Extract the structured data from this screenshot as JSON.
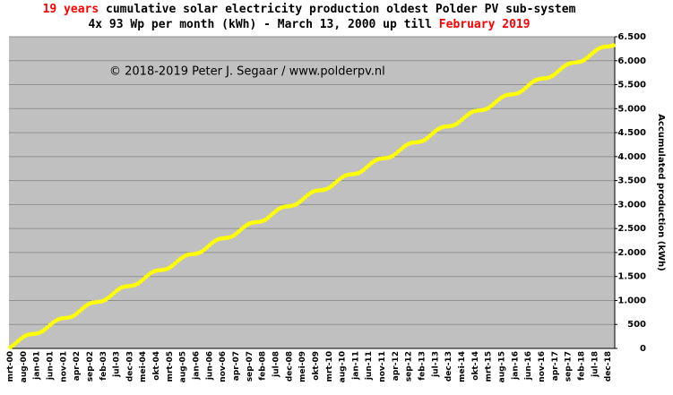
{
  "chart_data": {
    "type": "line",
    "title": [
      "19 years",
      " cumulative solar electricity production  oldest Polder PV sub-system"
    ],
    "subtitle": [
      "4x 93 Wp per month (kWh) - March 13, 2000 up till ",
      "February 2019"
    ],
    "highlight_color": "#ff0000",
    "annotation": "© 2018-2019  Peter J. Segaar / www.polderpv.nl",
    "y_label": "Accumulated production (kWh)",
    "y_axis_side": "right",
    "grid": true,
    "background": "#c0c0c0",
    "color": "#ffff00",
    "line_color": "#404040",
    "ylim": [
      0,
      6500
    ],
    "yticks": [
      0,
      500,
      {
        "value": 1000,
        "label": "1.000"
      },
      {
        "value": 1500,
        "label": "1.500"
      },
      {
        "value": 2000,
        "label": "2.000"
      },
      {
        "value": 2500,
        "label": "2.500"
      },
      {
        "value": 3000,
        "label": "3.000"
      },
      {
        "value": 3500,
        "label": "3.500"
      },
      {
        "value": 4000,
        "label": "4.000"
      },
      {
        "value": 4500,
        "label": "4.500"
      },
      {
        "value": 5000,
        "label": "5.000"
      },
      {
        "value": 5500,
        "label": "5.500"
      },
      {
        "value": 6000,
        "label": "6.000"
      },
      {
        "value": 6500,
        "label": "6.500"
      }
    ],
    "categories": [
      "mrt-00",
      null,
      null,
      null,
      null,
      "aug-00",
      null,
      null,
      null,
      null,
      "jan-01",
      null,
      null,
      null,
      null,
      "jun-01",
      null,
      null,
      null,
      null,
      "nov-01",
      null,
      null,
      null,
      null,
      "apr-02",
      null,
      null,
      null,
      null,
      "sep-02",
      null,
      null,
      null,
      null,
      "feb-03",
      null,
      null,
      null,
      null,
      "jul-03",
      null,
      null,
      null,
      null,
      "dec-03",
      null,
      null,
      null,
      null,
      "mei-04",
      null,
      null,
      null,
      null,
      "okt-04",
      null,
      null,
      null,
      null,
      "mrt-05",
      null,
      null,
      null,
      null,
      "aug-05",
      null,
      null,
      null,
      null,
      "jan-06",
      null,
      null,
      null,
      null,
      "jun-06",
      null,
      null,
      null,
      null,
      "nov-06",
      null,
      null,
      null,
      null,
      "apr-07",
      null,
      null,
      null,
      null,
      "sep-07",
      null,
      null,
      null,
      null,
      "feb-08",
      null,
      null,
      null,
      null,
      "jul-08",
      null,
      null,
      null,
      null,
      "dec-08",
      null,
      null,
      null,
      null,
      "mei-09",
      null,
      null,
      null,
      null,
      "okt-09",
      null,
      null,
      null,
      null,
      "mrt-10",
      null,
      null,
      null,
      null,
      "aug-10",
      null,
      null,
      null,
      null,
      "jan-11",
      null,
      null,
      null,
      null,
      "jun-11",
      null,
      null,
      null,
      null,
      "nov-11",
      null,
      null,
      null,
      null,
      "apr-12",
      null,
      null,
      null,
      null,
      "sep-12",
      null,
      null,
      null,
      null,
      "feb-13",
      null,
      null,
      null,
      null,
      "jul-13",
      null,
      null,
      null,
      null,
      "dec-13",
      null,
      null,
      null,
      null,
      "mei-14",
      null,
      null,
      null,
      null,
      "okt-14",
      null,
      null,
      null,
      null,
      "mrt-15",
      null,
      null,
      null,
      null,
      "aug-15",
      null,
      null,
      null,
      null,
      "jan-16",
      null,
      null,
      null,
      null,
      "jun-16",
      null,
      null,
      null,
      null,
      "nov-16",
      null,
      null,
      null,
      null,
      "apr-17",
      null,
      null,
      null,
      null,
      "sep-17",
      null,
      null,
      null,
      null,
      "feb-18",
      null,
      null,
      null,
      null,
      "jul-18",
      null,
      null,
      null,
      null,
      "dec-18",
      null,
      null
    ],
    "values": [
      20,
      60,
      108,
      155,
      202,
      242,
      272,
      290,
      298,
      303,
      311,
      326,
      353,
      393,
      441,
      488,
      535,
      575,
      605,
      623,
      631,
      636,
      644,
      659,
      686,
      726,
      774,
      821,
      868,
      908,
      938,
      956,
      964,
      969,
      977,
      992,
      1019,
      1059,
      1107,
      1154,
      1201,
      1241,
      1271,
      1289,
      1297,
      1302,
      1310,
      1325,
      1352,
      1392,
      1440,
      1487,
      1534,
      1574,
      1604,
      1622,
      1630,
      1635,
      1643,
      1658,
      1685,
      1725,
      1773,
      1820,
      1867,
      1907,
      1937,
      1955,
      1963,
      1968,
      1976,
      1991,
      2018,
      2058,
      2106,
      2153,
      2200,
      2240,
      2270,
      2288,
      2296,
      2301,
      2309,
      2324,
      2351,
      2391,
      2439,
      2486,
      2533,
      2573,
      2603,
      2621,
      2629,
      2634,
      2642,
      2657,
      2684,
      2724,
      2772,
      2819,
      2866,
      2906,
      2936,
      2954,
      2962,
      2967,
      2975,
      2990,
      3017,
      3057,
      3105,
      3152,
      3199,
      3239,
      3269,
      3287,
      3295,
      3300,
      3308,
      3323,
      3350,
      3390,
      3438,
      3485,
      3532,
      3572,
      3602,
      3620,
      3628,
      3633,
      3641,
      3656,
      3683,
      3723,
      3771,
      3818,
      3865,
      3905,
      3935,
      3953,
      3961,
      3966,
      3974,
      3989,
      4016,
      4056,
      4104,
      4151,
      4198,
      4238,
      4268,
      4286,
      4294,
      4299,
      4307,
      4322,
      4349,
      4389,
      4437,
      4484,
      4531,
      4571,
      4601,
      4619,
      4627,
      4632,
      4640,
      4655,
      4682,
      4722,
      4770,
      4817,
      4864,
      4904,
      4934,
      4952,
      4960,
      4965,
      4973,
      4988,
      5015,
      5055,
      5103,
      5150,
      5197,
      5237,
      5267,
      5285,
      5293,
      5298,
      5306,
      5321,
      5348,
      5388,
      5436,
      5483,
      5530,
      5570,
      5600,
      5618,
      5626,
      5631,
      5639,
      5654,
      5681,
      5721,
      5769,
      5816,
      5863,
      5903,
      5933,
      5951,
      5959,
      5964,
      5972,
      5987,
      6014,
      6054,
      6102,
      6149,
      6196,
      6236,
      6266,
      6284,
      6292,
      6297,
      6305,
      6320
    ]
  }
}
